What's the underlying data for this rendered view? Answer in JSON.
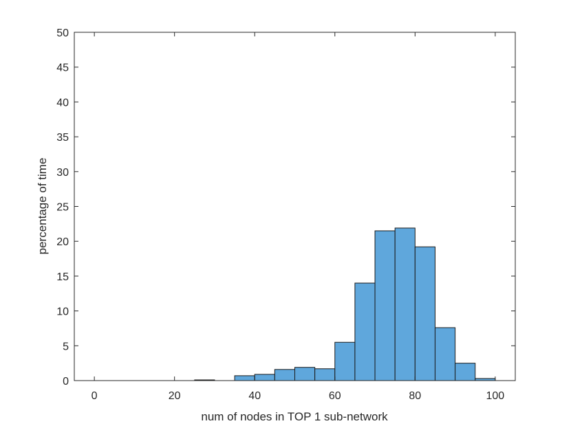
{
  "chart_data": {
    "type": "bar",
    "title": "",
    "xlabel": "num of nodes in TOP 1 sub-network",
    "ylabel": "percentage of time",
    "xlim": [
      -5,
      105
    ],
    "ylim": [
      0,
      50
    ],
    "x_ticks": [
      0,
      20,
      40,
      60,
      80,
      100
    ],
    "y_ticks": [
      0,
      5,
      10,
      15,
      20,
      25,
      30,
      35,
      40,
      45,
      50
    ],
    "grid": false,
    "legend": "none",
    "bar_color": "#5fa7dc",
    "bar_edge_color": "#1a1a1a",
    "bin_width": 5,
    "bins": [
      {
        "start": 25,
        "value": 0.1
      },
      {
        "start": 35,
        "value": 0.7
      },
      {
        "start": 40,
        "value": 0.9
      },
      {
        "start": 45,
        "value": 1.6
      },
      {
        "start": 50,
        "value": 1.9
      },
      {
        "start": 55,
        "value": 1.7
      },
      {
        "start": 60,
        "value": 5.5
      },
      {
        "start": 65,
        "value": 14.0
      },
      {
        "start": 70,
        "value": 21.5
      },
      {
        "start": 75,
        "value": 21.9
      },
      {
        "start": 80,
        "value": 19.2
      },
      {
        "start": 85,
        "value": 7.6
      },
      {
        "start": 90,
        "value": 2.5
      },
      {
        "start": 95,
        "value": 0.3
      }
    ]
  }
}
